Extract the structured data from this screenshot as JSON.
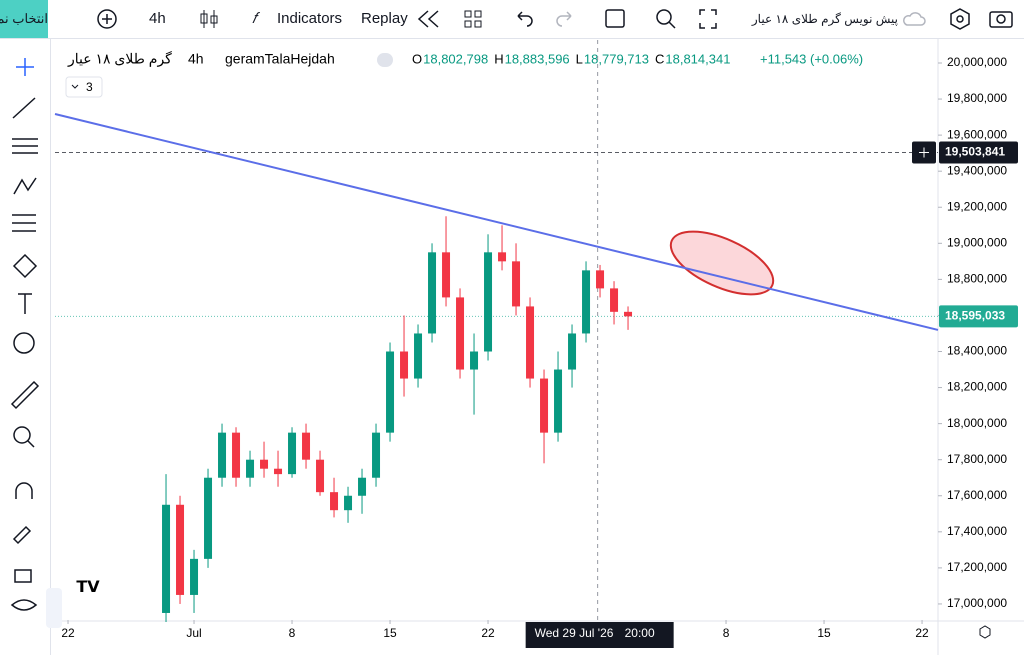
{
  "toolbar": {
    "symbol_button": "انتخاب نماد",
    "interval": "4h",
    "indicators": "Indicators",
    "replay": "Replay",
    "draft": "پیش نویس گرم طلای ۱۸ عیار"
  },
  "chart_data": {
    "type": "candlestick",
    "symbol": "گرم طلای ۱۸ عیار",
    "interval": "4h",
    "name": "geramTalaHejdah",
    "legend": [
      {
        "label": "O",
        "value": "18,802,798"
      },
      {
        "label": "H",
        "value": "18,883,596"
      },
      {
        "label": "L",
        "value": "18,779,713"
      },
      {
        "label": "C",
        "value": "18,814,341"
      }
    ],
    "change": "+11,543 (+0.06%)",
    "indicator_count": 3,
    "up_color": "#089981",
    "down_color": "#f23645",
    "x": [
      7,
      8,
      9,
      10,
      11,
      12,
      13,
      14,
      15,
      16,
      17,
      18,
      19,
      20,
      21,
      22,
      23,
      24,
      25,
      26,
      27,
      28,
      29,
      30,
      31,
      32,
      33,
      34,
      35,
      36,
      37,
      38,
      39,
      40
    ],
    "open": [
      16950000,
      17550000,
      17050000,
      17250000,
      17700000,
      17950000,
      17700000,
      17800000,
      17750000,
      17720000,
      17950000,
      17800000,
      17620000,
      17520000,
      17600000,
      17700000,
      17950000,
      18400000,
      18250000,
      18500000,
      18950000,
      18700000,
      18300000,
      18400000,
      18950000,
      18900000,
      18650000,
      18250000,
      17950000,
      18300000,
      18500000,
      18850000,
      18750000,
      18620000
    ],
    "high": [
      17720000,
      17600000,
      17300000,
      17750000,
      18000000,
      17980000,
      17850000,
      17900000,
      17850000,
      17980000,
      18000000,
      17850000,
      17700000,
      17650000,
      17750000,
      18000000,
      18450000,
      18600000,
      18550000,
      19000000,
      19150000,
      18750000,
      18500000,
      19050000,
      19100000,
      19000000,
      18700000,
      18300000,
      18400000,
      18550000,
      18900000,
      18880000,
      18790000,
      18650000
    ],
    "low": [
      16900000,
      17000000,
      16950000,
      17200000,
      17650000,
      17650000,
      17650000,
      17700000,
      17650000,
      17700000,
      17750000,
      17600000,
      17480000,
      17450000,
      17500000,
      17650000,
      17900000,
      18150000,
      18200000,
      18450000,
      18650000,
      18250000,
      18050000,
      18350000,
      18850000,
      18600000,
      18200000,
      17780000,
      17900000,
      18200000,
      18450000,
      18700000,
      18550000,
      18520000
    ],
    "close": [
      17550000,
      17050000,
      17250000,
      17700000,
      17950000,
      17700000,
      17800000,
      17750000,
      17720000,
      17950000,
      17800000,
      17620000,
      17520000,
      17600000,
      17700000,
      17950000,
      18400000,
      18250000,
      18500000,
      18950000,
      18700000,
      18300000,
      18400000,
      18950000,
      18900000,
      18650000,
      18250000,
      17950000,
      18300000,
      18500000,
      18850000,
      18750000,
      18620000,
      18595000
    ],
    "trendline": {
      "color": "#5b6ee8",
      "x": [
        -0.93,
        62.14
      ],
      "values": [
        19717200,
        18519600
      ]
    },
    "price_lines": [
      {
        "value": 19503841,
        "label": "19,503,841",
        "color": "#131722",
        "style": "dashed"
      },
      {
        "value": 18595033,
        "label": "18,595,033",
        "color": "#22ab94",
        "style": "dotted"
      }
    ],
    "crosshair": {
      "x": 37.83,
      "date_label": "Wed 29 Jul '26",
      "time_label": "20:00"
    },
    "xlim": [
      -0.93,
      62.14
    ],
    "xticks": [
      {
        "value": 0,
        "label": "22"
      },
      {
        "value": 9,
        "label": "Jul"
      },
      {
        "value": 16,
        "label": "8"
      },
      {
        "value": 23,
        "label": "15"
      },
      {
        "value": 30,
        "label": "22"
      },
      {
        "value": 47,
        "label": "8"
      },
      {
        "value": 54,
        "label": "15"
      },
      {
        "value": 61,
        "label": "22"
      }
    ],
    "ylim": [
      16911000,
      20127500
    ],
    "yticks": [
      {
        "value": 17000000,
        "label": "17,000,000"
      },
      {
        "value": 17200000,
        "label": "17,200,000"
      },
      {
        "value": 17400000,
        "label": "17,400,000"
      },
      {
        "value": 17600000,
        "label": "17,600,000"
      },
      {
        "value": 17800000,
        "label": "17,800,000"
      },
      {
        "value": 18000000,
        "label": "18,000,000"
      },
      {
        "value": 18200000,
        "label": "18,200,000"
      },
      {
        "value": 18400000,
        "label": "18,400,000"
      },
      {
        "value": 18600000,
        "label": "18,600,000"
      },
      {
        "value": 18800000,
        "label": "18,800,000"
      },
      {
        "value": 19000000,
        "label": "19,000,000"
      },
      {
        "value": 19200000,
        "label": "19,200,000"
      },
      {
        "value": 19400000,
        "label": "19,400,000"
      },
      {
        "value": 19600000,
        "label": "19,600,000"
      },
      {
        "value": 19800000,
        "label": "19,800,000"
      },
      {
        "value": 20000000,
        "label": "20,000,000"
      }
    ],
    "grid": false
  }
}
